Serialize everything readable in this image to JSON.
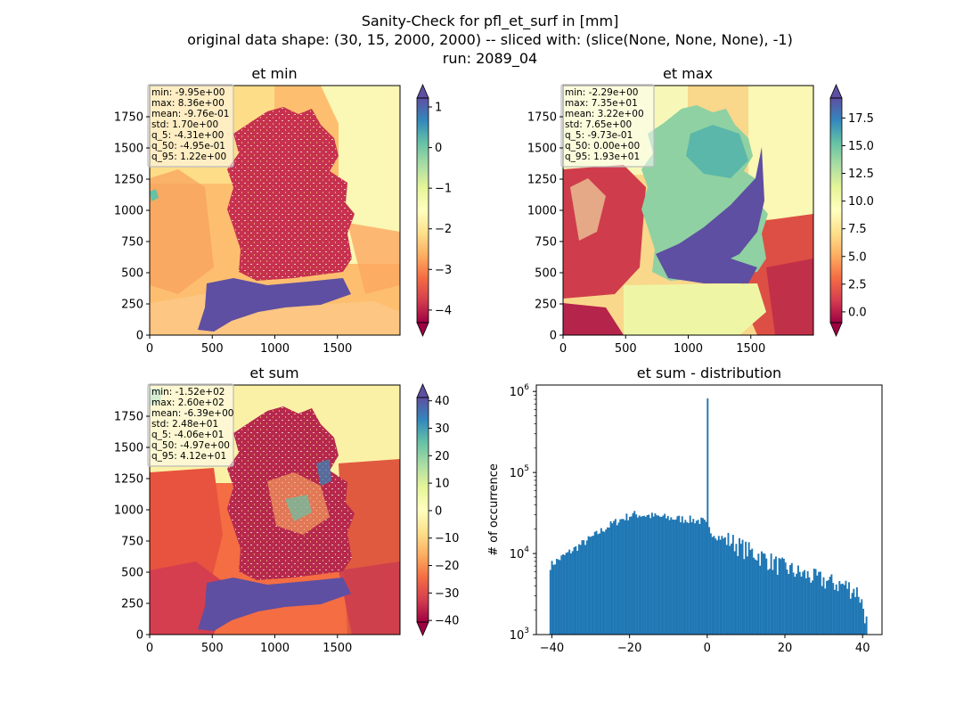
{
  "figure": {
    "title_line1": "Sanity-Check for pfl_et_surf in [mm]",
    "title_line2": "original data shape: (30, 15, 2000, 2000) -- sliced with: (slice(None, None, None), -1)",
    "title_line3": "run: 2089_04"
  },
  "colors": {
    "cmap": [
      "#9e0142",
      "#d53e4f",
      "#f46d43",
      "#fdae61",
      "#fee08b",
      "#ffffbf",
      "#e6f598",
      "#abdda4",
      "#66c2a5",
      "#3288bd",
      "#5e4fa2"
    ],
    "hist_bar": "#1f77b4"
  },
  "chart_data": [
    {
      "type": "heatmap",
      "title": "et min",
      "xticks": [
        "0",
        "500",
        "1000",
        "1500"
      ],
      "yticks": [
        "0",
        "250",
        "500",
        "750",
        "1000",
        "1250",
        "1500",
        "1750"
      ],
      "xlim": [
        0,
        2000
      ],
      "ylim": [
        0,
        2000
      ],
      "colorbar": {
        "vmin": -4.31,
        "vmax": 1.22,
        "extend": "both",
        "ticks": [
          -4,
          -3,
          -2,
          -1,
          0,
          1
        ],
        "tick_labels": [
          "−4",
          "−3",
          "−2",
          "−1",
          "0",
          "1"
        ]
      },
      "stats": [
        "min: -9.95e+00",
        "max: 8.36e+00",
        "mean: -9.76e-01",
        "std: 1.70e+00",
        "q_5: -4.31e+00",
        "q_50: -4.95e-01",
        "q_95: 1.22e+00"
      ]
    },
    {
      "type": "heatmap",
      "title": "et max",
      "xticks": [
        "0",
        "500",
        "1000",
        "1500"
      ],
      "yticks": [
        "0",
        "250",
        "500",
        "750",
        "1000",
        "1250",
        "1500",
        "1750"
      ],
      "xlim": [
        0,
        2000
      ],
      "ylim": [
        0,
        2000
      ],
      "colorbar": {
        "vmin": -0.973,
        "vmax": 19.3,
        "extend": "both",
        "ticks": [
          0.0,
          2.5,
          5.0,
          7.5,
          10.0,
          12.5,
          15.0,
          17.5
        ],
        "tick_labels": [
          "0.0",
          "2.5",
          "5.0",
          "7.5",
          "10.0",
          "12.5",
          "15.0",
          "17.5"
        ]
      },
      "stats": [
        "min: -2.29e+00",
        "max: 7.35e+01",
        "mean: 3.22e+00",
        "std: 7.65e+00",
        "q_5: -9.73e-01",
        "q_50: 0.00e+00",
        "q_95: 1.93e+01"
      ]
    },
    {
      "type": "heatmap",
      "title": "et sum",
      "xticks": [
        "0",
        "500",
        "1000",
        "1500"
      ],
      "yticks": [
        "0",
        "250",
        "500",
        "750",
        "1000",
        "1250",
        "1500",
        "1750"
      ],
      "xlim": [
        0,
        2000
      ],
      "ylim": [
        0,
        2000
      ],
      "colorbar": {
        "vmin": -40.6,
        "vmax": 41.2,
        "extend": "both",
        "ticks": [
          -40,
          -30,
          -20,
          -10,
          0,
          10,
          20,
          30,
          40
        ],
        "tick_labels": [
          "−40",
          "−30",
          "−20",
          "−10",
          "0",
          "10",
          "20",
          "30",
          "40"
        ]
      },
      "stats": [
        "min: -1.52e+02",
        "max: 2.60e+02",
        "mean: -6.39e+00",
        "std: 2.48e+01",
        "q_5: -4.06e+01",
        "q_50: -4.97e+00",
        "q_95: 4.12e+01"
      ]
    },
    {
      "type": "bar",
      "title": "et sum - distribution",
      "ylabel": "# of occurrence",
      "yscale": "log",
      "ylim": [
        1000,
        1200000
      ],
      "xlim": [
        -44,
        45
      ],
      "xticks": [
        -40,
        -20,
        0,
        20,
        40
      ],
      "xtick_labels": [
        "−40",
        "−20",
        "0",
        "20",
        "40"
      ],
      "yticks": [
        1000,
        10000,
        100000,
        1000000
      ],
      "ytick_labels": [
        [
          "10",
          "3"
        ],
        [
          "10",
          "4"
        ],
        [
          "10",
          "5"
        ],
        [
          "10",
          "6"
        ]
      ],
      "bins": {
        "start": -40.6,
        "end": 41.2,
        "count": 200
      },
      "profile": [
        [
          -40.6,
          7000
        ],
        [
          -39,
          8000
        ],
        [
          -36,
          10000
        ],
        [
          -33,
          12500
        ],
        [
          -30,
          15500
        ],
        [
          -27,
          19500
        ],
        [
          -24,
          24000
        ],
        [
          -21,
          28000
        ],
        [
          -19,
          30500
        ],
        [
          -17,
          30000
        ],
        [
          -14,
          29000
        ],
        [
          -11,
          28000
        ],
        [
          -8,
          27000
        ],
        [
          -5,
          26500
        ],
        [
          -1,
          25000
        ],
        [
          1,
          18500
        ],
        [
          3,
          16000
        ],
        [
          6,
          14500
        ],
        [
          9,
          12000
        ],
        [
          12,
          10200
        ],
        [
          15,
          8800
        ],
        [
          18,
          7400
        ],
        [
          21,
          6500
        ],
        [
          24,
          5700
        ],
        [
          27,
          5200
        ],
        [
          30,
          4700
        ],
        [
          33,
          4300
        ],
        [
          36,
          4000
        ],
        [
          39,
          3300
        ],
        [
          40.4,
          2000
        ],
        [
          41.2,
          1300
        ]
      ],
      "spike": {
        "x": 0,
        "value": 820000
      }
    }
  ]
}
